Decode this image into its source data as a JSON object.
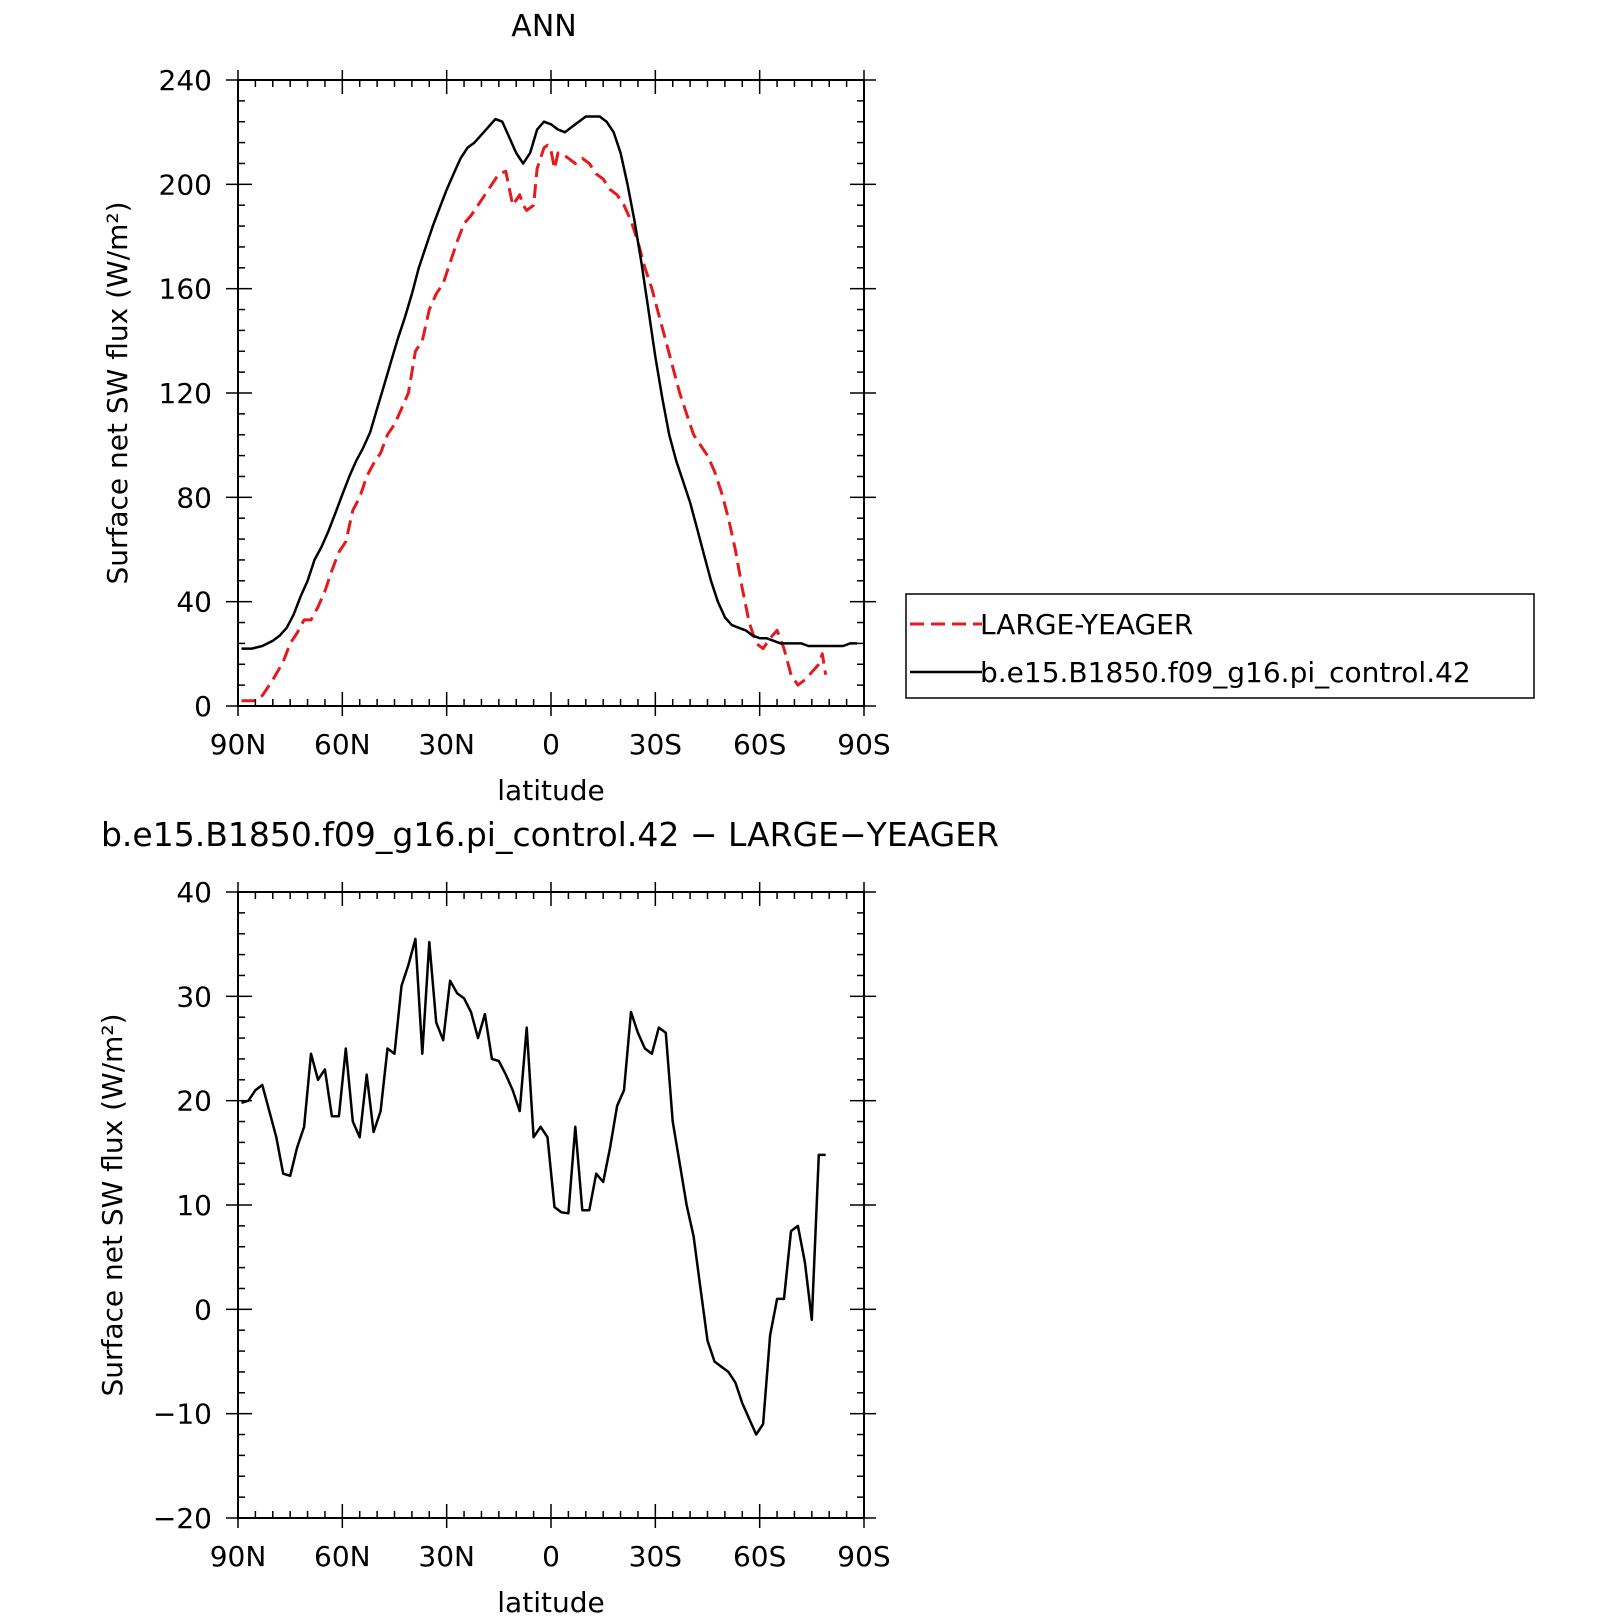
{
  "chart_data": [
    {
      "type": "line",
      "title": "ANN",
      "xlabel": "latitude",
      "ylabel": "Surface net SW flux (W/m²)",
      "xlim": [
        90,
        -90
      ],
      "ylim": [
        0,
        240
      ],
      "x_ticks": [
        90,
        60,
        30,
        0,
        -30,
        -60,
        -90
      ],
      "x_tick_labels": [
        "90N",
        "60N",
        "30N",
        "0",
        "30S",
        "60S",
        "90S"
      ],
      "y_ticks": [
        0,
        40,
        80,
        120,
        160,
        200,
        240
      ],
      "y_tick_labels": [
        "0",
        "40",
        "80",
        "120",
        "160",
        "200",
        "240"
      ],
      "legend_position": "right",
      "series": [
        {
          "name": "LARGE-YEAGER",
          "color": "#e41a1c",
          "dash": "dashed",
          "x": [
            89,
            85,
            83,
            80,
            77,
            75,
            73,
            71,
            69,
            67,
            65,
            63,
            61,
            59,
            57,
            55,
            53,
            51,
            49,
            47,
            45,
            43,
            41,
            39,
            37,
            35,
            33,
            31,
            29,
            27,
            25,
            23,
            21,
            19,
            17,
            15,
            13,
            11,
            10,
            9,
            8,
            7,
            5,
            4,
            2,
            1,
            0,
            -1,
            -2,
            -3,
            -5,
            -7,
            -9,
            -11,
            -13,
            -15,
            -17,
            -19,
            -21,
            -23,
            -25,
            -27,
            -29,
            -31,
            -33,
            -35,
            -37,
            -39,
            -41,
            -43,
            -45,
            -47,
            -49,
            -51,
            -53,
            -55,
            -57,
            -59,
            -61,
            -63,
            -65,
            -67,
            -69,
            -71,
            -73,
            -75,
            -77,
            -78,
            -79
          ],
          "y": [
            2,
            2,
            4,
            10,
            17,
            24,
            28,
            33,
            33,
            38,
            44,
            52,
            59,
            63,
            75,
            80,
            88,
            93,
            97,
            104,
            108,
            114,
            120,
            136,
            140,
            152,
            158,
            162,
            170,
            178,
            185,
            188,
            192,
            196,
            200,
            204,
            205,
            192,
            194,
            196,
            192,
            190,
            192,
            206,
            214,
            215,
            213,
            206,
            212,
            212,
            210,
            208,
            210,
            208,
            204,
            202,
            198,
            196,
            192,
            186,
            178,
            168,
            160,
            150,
            140,
            130,
            120,
            112,
            104,
            100,
            96,
            90,
            82,
            72,
            60,
            45,
            32,
            24,
            22,
            26,
            29,
            22,
            12,
            8,
            10,
            13,
            16,
            20,
            12
          ]
        },
        {
          "name": "b.e15.B1850.f09_g16.pi_control.42",
          "color": "#000000",
          "dash": "solid",
          "x": [
            89,
            86,
            83,
            80,
            78,
            76,
            74,
            72,
            70,
            68,
            66,
            64,
            62,
            60,
            58,
            56,
            54,
            52,
            50,
            48,
            46,
            44,
            42,
            40,
            38,
            36,
            34,
            32,
            30,
            28,
            26,
            24,
            22,
            20,
            18,
            16,
            14,
            12,
            10,
            8,
            6,
            4,
            2,
            0,
            -2,
            -4,
            -6,
            -8,
            -10,
            -12,
            -14,
            -16,
            -18,
            -20,
            -22,
            -24,
            -26,
            -28,
            -30,
            -32,
            -34,
            -36,
            -38,
            -40,
            -42,
            -44,
            -46,
            -48,
            -50,
            -52,
            -54,
            -56,
            -58,
            -60,
            -62,
            -64,
            -66,
            -68,
            -70,
            -72,
            -74,
            -76,
            -78,
            -80,
            -82,
            -84,
            -86,
            -88
          ],
          "y": [
            22,
            22,
            23,
            25,
            27,
            30,
            35,
            42,
            48,
            56,
            61,
            67,
            74,
            81,
            88,
            94,
            99,
            105,
            114,
            123,
            132,
            141,
            149,
            158,
            168,
            176,
            184,
            191,
            198,
            204,
            210,
            214,
            216,
            219,
            222,
            225,
            224,
            218,
            212,
            208,
            212,
            221,
            224,
            223,
            221,
            220,
            222,
            224,
            226,
            226,
            226,
            224,
            220,
            212,
            200,
            186,
            170,
            152,
            134,
            118,
            104,
            94,
            86,
            78,
            68,
            58,
            48,
            40,
            34,
            31,
            30,
            29,
            27,
            26,
            26,
            25,
            24,
            24,
            24,
            24,
            23,
            23,
            23,
            23,
            23,
            23,
            24,
            24
          ]
        }
      ]
    },
    {
      "type": "line",
      "title": "b.e15.B1850.f09_g16.pi_control.42 − LARGE−YEAGER",
      "xlabel": "latitude",
      "ylabel": "Surface net SW flux (W/m²)",
      "xlim": [
        90,
        -90
      ],
      "ylim": [
        -20,
        40
      ],
      "x_ticks": [
        90,
        60,
        30,
        0,
        -30,
        -60,
        -90
      ],
      "x_tick_labels": [
        "90N",
        "60N",
        "30N",
        "0",
        "30S",
        "60S",
        "90S"
      ],
      "y_ticks": [
        -20,
        -10,
        0,
        10,
        20,
        30,
        40
      ],
      "y_tick_labels": [
        "−20",
        "−10",
        "0",
        "10",
        "20",
        "30",
        "40"
      ],
      "series": [
        {
          "color": "#000000",
          "dash": "solid",
          "x": [
            89,
            87,
            85,
            83,
            81,
            79,
            77,
            75,
            73,
            71,
            69,
            67,
            65,
            63,
            61,
            59,
            57,
            55,
            53,
            51,
            49,
            47,
            45,
            43,
            41,
            39,
            37,
            35,
            33,
            31,
            29,
            27,
            25,
            23,
            21,
            19,
            17,
            15,
            13,
            11,
            9,
            7,
            5,
            3,
            1,
            -1,
            -3,
            -5,
            -7,
            -9,
            -11,
            -13,
            -15,
            -17,
            -19,
            -21,
            -23,
            -25,
            -27,
            -29,
            -31,
            -33,
            -35,
            -37,
            -39,
            -41,
            -43,
            -45,
            -47,
            -49,
            -51,
            -53,
            -55,
            -57,
            -59,
            -61,
            -63,
            -65,
            -67,
            -69,
            -71,
            -73,
            -75,
            -77,
            -79
          ],
          "y": [
            19.8,
            20,
            21,
            21.5,
            19,
            16.5,
            13,
            12.8,
            15.5,
            17.5,
            24.5,
            22,
            23,
            18.5,
            18.5,
            25,
            18,
            16.5,
            22.5,
            17,
            19,
            25,
            24.5,
            31,
            33,
            35.5,
            24.5,
            35.2,
            27.5,
            25.8,
            31.5,
            30.3,
            29.8,
            28.5,
            26,
            28.3,
            24,
            23.8,
            22.5,
            21,
            19,
            27,
            16.5,
            17.5,
            16.5,
            9.8,
            9.3,
            9.2,
            17.5,
            9.5,
            9.5,
            13,
            12.2,
            15.5,
            19.5,
            21,
            28.5,
            26.5,
            25,
            24.5,
            27,
            26.5,
            18,
            14,
            10,
            7,
            2,
            -3,
            -5,
            -5.5,
            -6,
            -7,
            -9,
            -10.5,
            -12,
            -11,
            -2.5,
            1,
            1,
            7.5,
            8,
            4.5,
            -1,
            14.8,
            14.8
          ]
        }
      ]
    }
  ]
}
